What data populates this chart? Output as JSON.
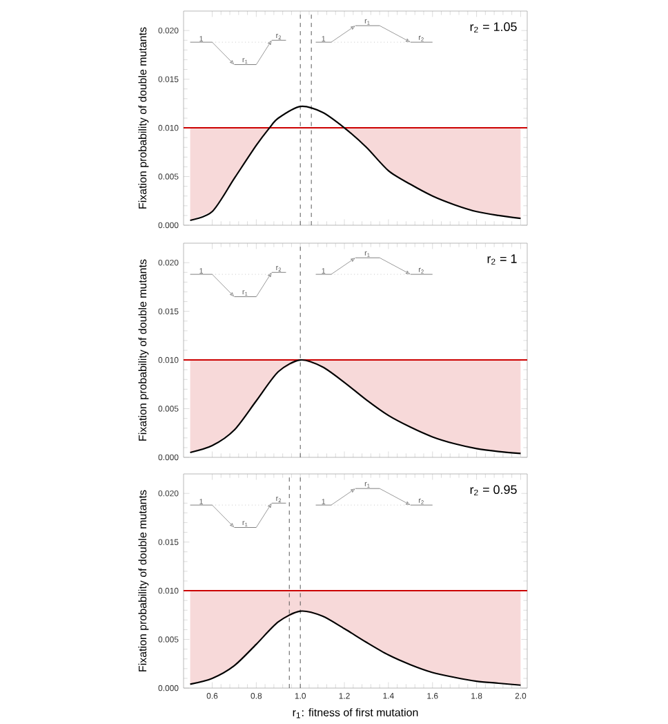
{
  "chart_data": [
    {
      "type": "line",
      "title": "r$_{2}$ = 1.05",
      "ylabel": "Fixation probability of double mutants",
      "tick_labels": "y",
      "xlim": [
        0.47,
        2.03
      ],
      "ylim": [
        0,
        0.022
      ],
      "xticks": [
        {
          "value": 0.6,
          "label": null
        },
        {
          "value": 0.8,
          "label": null
        },
        {
          "value": 1.0,
          "label": null
        },
        {
          "value": 1.2,
          "label": null
        },
        {
          "value": 1.4,
          "label": null
        },
        {
          "value": 1.6,
          "label": null
        },
        {
          "value": 1.8,
          "label": null
        },
        {
          "value": 2.0,
          "label": null
        }
      ],
      "yticks": [
        {
          "value": 0,
          "label": "0.000"
        },
        {
          "value": 0.005,
          "label": "0.005"
        },
        {
          "value": 0.01,
          "label": "0.010"
        },
        {
          "value": 0.015,
          "label": "0.015"
        },
        {
          "value": 0.02,
          "label": "0.020"
        }
      ],
      "series": [
        {
          "type": "line",
          "color": "#000000",
          "x": [
            0.5,
            0.6,
            0.7,
            0.8,
            0.86,
            0.9,
            1.0,
            1.1,
            1.2,
            1.3,
            1.4,
            1.5,
            1.6,
            1.7,
            1.8,
            1.9,
            2.0
          ],
          "values": [
            0.0005,
            0.0014,
            0.0048,
            0.0082,
            0.01,
            0.011,
            0.0122,
            0.0116,
            0.01,
            0.008,
            0.0056,
            0.0042,
            0.003,
            0.0021,
            0.0014,
            0.001,
            0.0007
          ],
          "lower": [
            0.0005,
            0.0014,
            0.0048,
            0.0082,
            0.01,
            0.01,
            0.01,
            0.01,
            0.01,
            0.008,
            0.0056,
            0.0042,
            0.003,
            0.0021,
            0.0014,
            0.001,
            0.0007
          ],
          "upper": [
            0.01,
            0.01,
            0.01,
            0.01,
            0.01,
            0.01,
            0.01,
            0.01,
            0.01,
            0.01,
            0.01,
            0.01,
            0.01,
            0.01,
            0.01,
            0.01,
            0.01
          ]
        }
      ],
      "ref_lines": [
        {
          "axis": "y",
          "value": 0.01,
          "color": "#cc0000",
          "line_style": "solid"
        },
        {
          "axis": "x",
          "value": 1.0,
          "color": "#555555",
          "line_style": "dashed"
        },
        {
          "axis": "x",
          "value": 1.05,
          "color": "#555555",
          "line_style": "dashed"
        }
      ],
      "annotations": [
        "1",
        "r$_{1}$",
        "r$_{2}$",
        "1",
        "r$_{1}$",
        "r$_{2}$"
      ]
    },
    {
      "type": "line",
      "title": "r$_{2}$ = 1",
      "ylabel": "Fixation probability of double mutants",
      "tick_labels": "y",
      "xlim": [
        0.47,
        2.03
      ],
      "ylim": [
        0,
        0.022
      ],
      "xticks": [
        {
          "value": 0.6,
          "label": null
        },
        {
          "value": 0.8,
          "label": null
        },
        {
          "value": 1.0,
          "label": null
        },
        {
          "value": 1.2,
          "label": null
        },
        {
          "value": 1.4,
          "label": null
        },
        {
          "value": 1.6,
          "label": null
        },
        {
          "value": 1.8,
          "label": null
        },
        {
          "value": 2.0,
          "label": null
        }
      ],
      "yticks": [
        {
          "value": 0,
          "label": "0.000"
        },
        {
          "value": 0.005,
          "label": "0.005"
        },
        {
          "value": 0.01,
          "label": "0.010"
        },
        {
          "value": 0.015,
          "label": "0.015"
        },
        {
          "value": 0.02,
          "label": "0.020"
        }
      ],
      "series": [
        {
          "type": "line",
          "color": "#000000",
          "x": [
            0.5,
            0.6,
            0.7,
            0.8,
            0.9,
            1.0,
            1.1,
            1.2,
            1.3,
            1.4,
            1.5,
            1.6,
            1.7,
            1.8,
            1.9,
            2.0
          ],
          "values": [
            0.0005,
            0.0012,
            0.0028,
            0.0058,
            0.0088,
            0.01,
            0.0093,
            0.0077,
            0.0059,
            0.0043,
            0.0031,
            0.0021,
            0.0014,
            0.0009,
            0.0006,
            0.0004
          ],
          "lower": [
            0.0005,
            0.0012,
            0.0028,
            0.0058,
            0.0088,
            0.01,
            0.0093,
            0.0077,
            0.0059,
            0.0043,
            0.0031,
            0.0021,
            0.0014,
            0.0009,
            0.0006,
            0.0004
          ],
          "upper": [
            0.01,
            0.01,
            0.01,
            0.01,
            0.01,
            0.01,
            0.01,
            0.01,
            0.01,
            0.01,
            0.01,
            0.01,
            0.01,
            0.01,
            0.01,
            0.01
          ]
        }
      ],
      "ref_lines": [
        {
          "axis": "y",
          "value": 0.01,
          "color": "#cc0000",
          "line_style": "solid"
        },
        {
          "axis": "x",
          "value": 1.0,
          "color": "#555555",
          "line_style": "dashed"
        }
      ],
      "annotations": [
        "1",
        "r$_{1}$",
        "r$_{2}$",
        "1",
        "r$_{1}$",
        "r$_{2}$"
      ]
    },
    {
      "type": "line",
      "title": "r$_{2}$ = 0.95",
      "ylabel": "Fixation probability of double mutants",
      "xlabel": "r$_{1}$: fitness of first mutation",
      "xlim": [
        0.47,
        2.03
      ],
      "ylim": [
        0,
        0.022
      ],
      "xticks": [
        {
          "value": 0.6,
          "label": "0.6"
        },
        {
          "value": 0.8,
          "label": "0.8"
        },
        {
          "value": 1.0,
          "label": "1.0"
        },
        {
          "value": 1.2,
          "label": "1.2"
        },
        {
          "value": 1.4,
          "label": "1.4"
        },
        {
          "value": 1.6,
          "label": "1.6"
        },
        {
          "value": 1.8,
          "label": "1.8"
        },
        {
          "value": 2.0,
          "label": "2.0"
        }
      ],
      "yticks": [
        {
          "value": 0,
          "label": "0.000"
        },
        {
          "value": 0.005,
          "label": "0.005"
        },
        {
          "value": 0.01,
          "label": "0.010"
        },
        {
          "value": 0.015,
          "label": "0.015"
        },
        {
          "value": 0.02,
          "label": "0.020"
        }
      ],
      "series": [
        {
          "type": "line",
          "color": "#000000",
          "x": [
            0.5,
            0.6,
            0.7,
            0.8,
            0.9,
            1.0,
            1.1,
            1.2,
            1.3,
            1.4,
            1.5,
            1.6,
            1.7,
            1.8,
            1.9,
            2.0
          ],
          "values": [
            0.0004,
            0.001,
            0.0023,
            0.0045,
            0.0068,
            0.0079,
            0.0074,
            0.0061,
            0.0047,
            0.0034,
            0.0024,
            0.0016,
            0.0011,
            0.0007,
            0.0005,
            0.0003
          ],
          "lower": [
            0.0004,
            0.001,
            0.0023,
            0.0045,
            0.0068,
            0.0079,
            0.0074,
            0.0061,
            0.0047,
            0.0034,
            0.0024,
            0.0016,
            0.0011,
            0.0007,
            0.0005,
            0.0003
          ],
          "upper": [
            0.01,
            0.01,
            0.01,
            0.01,
            0.01,
            0.01,
            0.01,
            0.01,
            0.01,
            0.01,
            0.01,
            0.01,
            0.01,
            0.01,
            0.01,
            0.01
          ]
        }
      ],
      "ref_lines": [
        {
          "axis": "y",
          "value": 0.01,
          "color": "#cc0000",
          "line_style": "solid"
        },
        {
          "axis": "x",
          "value": 0.95,
          "color": "#555555",
          "line_style": "dashed"
        },
        {
          "axis": "x",
          "value": 1.0,
          "color": "#555555",
          "line_style": "dashed"
        }
      ],
      "annotations": [
        "1",
        "r$_{1}$",
        "r$_{2}$",
        "1",
        "r$_{1}$",
        "r$_{2}$"
      ]
    }
  ]
}
